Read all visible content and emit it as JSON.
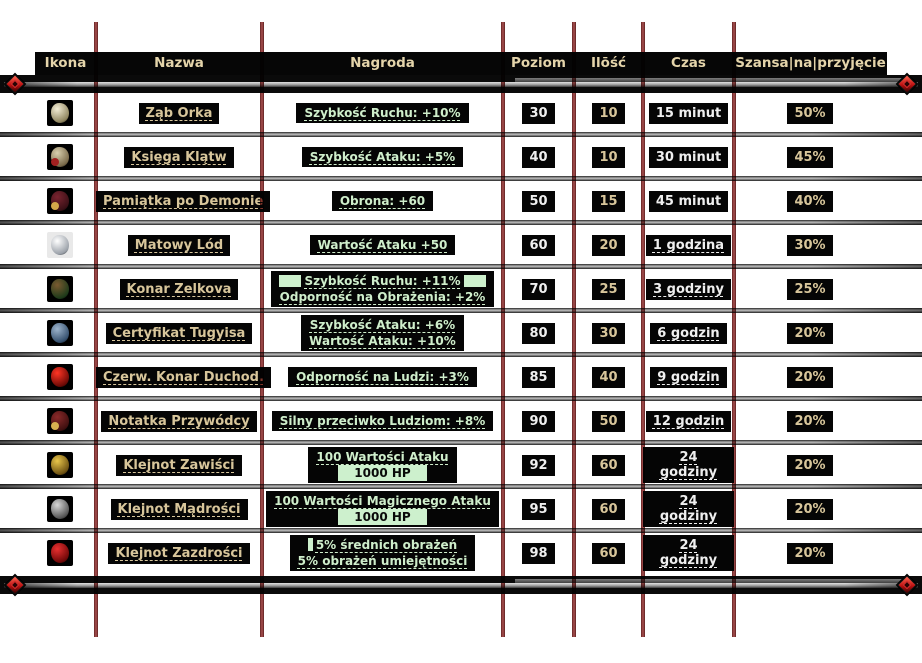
{
  "header": {
    "columns": [
      "Ikona",
      "Nazwa",
      "Nagroda",
      "Poziom",
      "Ilōść",
      "Czas",
      "Szansa|na|przyjęcie"
    ]
  },
  "colors": {
    "header_text": "#e4d4aa",
    "name_link": "#d8c69b",
    "reward_link": "#cfeecb",
    "highlight_green": "#cdf0cd",
    "value_white": "#efefef",
    "value_tan": "#d8c69b",
    "box_black": "#050505",
    "column_line_red": "#aa5252",
    "diamond_red": "#c01212"
  },
  "rows": [
    {
      "icon": {
        "name": "orc-tooth-icon",
        "tile": "#000000",
        "c1": "#f2ecd4",
        "c2": "#8f855f"
      },
      "name": "Ząb Orka",
      "level": "30",
      "qty": "10",
      "time": "15 minut",
      "time_link": false,
      "chance": "50%",
      "reward": [
        [
          {
            "s": "txt",
            "t": "Szybkość Ruchu: +10%"
          }
        ]
      ]
    },
    {
      "icon": {
        "name": "curse-book-icon",
        "tile": "#000000",
        "c1": "#d8cfae",
        "c2": "#7a6a4a",
        "c3": "#a02020"
      },
      "name": "Księga Klątw",
      "level": "40",
      "qty": "10",
      "time": "30 minut",
      "time_link": false,
      "chance": "45%",
      "reward": [
        [
          {
            "s": "txt",
            "t": "Szybkość Ataku: +5%"
          }
        ]
      ]
    },
    {
      "icon": {
        "name": "demon-keepsake-icon",
        "tile": "#000000",
        "c1": "#7a2430",
        "c2": "#3a1016",
        "c3": "#d4a84a"
      },
      "name": "Pamiątka po Demonie",
      "level": "50",
      "qty": "15",
      "time": "45 minut",
      "time_link": false,
      "chance": "40%",
      "reward": [
        [
          {
            "s": "txt",
            "t": "Obrona: +60"
          }
        ]
      ]
    },
    {
      "icon": {
        "name": "matte-ice-icon",
        "tile": "#e9e9e9",
        "c1": "#ffffff",
        "c2": "#9aa0a8"
      },
      "name": "Matowy Lód",
      "level": "60",
      "qty": "20",
      "time": "1 godzina",
      "time_link": true,
      "chance": "30%",
      "reward": [
        [
          {
            "s": "txt",
            "t": "Wartość Ataku +50"
          }
        ]
      ]
    },
    {
      "icon": {
        "name": "zelkova-branch-icon",
        "tile": "#000000",
        "c1": "#7a5a30",
        "c2": "#1e3a1a"
      },
      "name": "Konar Zelkova",
      "level": "70",
      "qty": "25",
      "time": "3 godziny",
      "time_link": true,
      "chance": "25%",
      "reward": [
        [
          {
            "s": "blk"
          },
          {
            "s": "txt",
            "t": "Szybkość Ruchu: +11%"
          },
          {
            "s": "blk"
          }
        ],
        [
          {
            "s": "txt",
            "t": "Odporność na Obrażenia: +2%"
          }
        ]
      ]
    },
    {
      "icon": {
        "name": "tugyi-certificate-icon",
        "tile": "#000000",
        "c1": "#9db4cc",
        "c2": "#35506e"
      },
      "name": "Certyfikat Tugyisa",
      "level": "80",
      "qty": "30",
      "time": "6 godzin",
      "time_link": true,
      "chance": "20%",
      "reward": [
        [
          {
            "s": "txt",
            "t": "Szybkość Ataku: +6%"
          }
        ],
        [
          {
            "s": "txt",
            "t": "Wartość Ataku: +10%"
          }
        ]
      ]
    },
    {
      "icon": {
        "name": "red-ghost-branch-icon",
        "tile": "#000000",
        "c1": "#ff3524",
        "c2": "#6e0a06"
      },
      "name": "Czerw. Konar Duchod.",
      "level": "85",
      "qty": "40",
      "time": "9 godzin",
      "time_link": true,
      "chance": "20%",
      "reward": [
        [
          {
            "s": "txt",
            "t": "Odporność na Ludzi: +3%"
          }
        ]
      ]
    },
    {
      "icon": {
        "name": "leader-note-icon",
        "tile": "#000000",
        "c1": "#8a2a2a",
        "c2": "#401010",
        "c3": "#d8b050"
      },
      "name": "Notatka Przywódcy",
      "level": "90",
      "qty": "50",
      "time": "12 godzin",
      "time_link": true,
      "chance": "20%",
      "reward": [
        [
          {
            "s": "txt",
            "t": "Silny przeciwko Ludziom: +8%"
          }
        ]
      ]
    },
    {
      "icon": {
        "name": "envy-gem-icon",
        "tile": "#000000",
        "c1": "#e8c54a",
        "c2": "#6e5212"
      },
      "name": "Klejnot Zawiści",
      "level": "92",
      "qty": "60",
      "time": "24 godziny",
      "time_link": true,
      "chance": "20%",
      "reward": [
        [
          {
            "s": "txt",
            "t": "100 Wartości Ataku"
          }
        ],
        [
          {
            "s": "hl",
            "t": "1000 HP"
          }
        ]
      ]
    },
    {
      "icon": {
        "name": "wisdom-gem-icon",
        "tile": "#000000",
        "c1": "#d8d8d8",
        "c2": "#555555"
      },
      "name": "Klejnot Mądrości",
      "level": "95",
      "qty": "60",
      "time": "24 godziny",
      "time_link": true,
      "chance": "20%",
      "reward": [
        [
          {
            "s": "txt",
            "t": "100 Wartości Magicznego Ataku"
          }
        ],
        [
          {
            "s": "hl",
            "t": "1000 HP"
          }
        ]
      ]
    },
    {
      "icon": {
        "name": "jealousy-gem-icon",
        "tile": "#000000",
        "c1": "#e83030",
        "c2": "#700808"
      },
      "name": "Klejnot Zazdrości",
      "level": "98",
      "qty": "60",
      "time": "24 godziny",
      "time_link": true,
      "chance": "20%",
      "reward": [
        [
          {
            "s": "bar"
          },
          {
            "s": "txt",
            "t": "5% średnich obrażeń"
          }
        ],
        [
          {
            "s": "txt",
            "t": "5% obrażeń umiejętności"
          }
        ]
      ]
    }
  ]
}
